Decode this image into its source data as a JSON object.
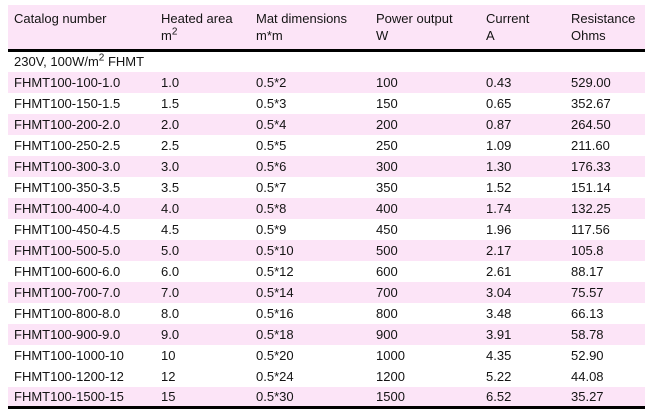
{
  "colors": {
    "highlight_pink": "#fce4f7",
    "border_black": "#000000",
    "text": "#141414"
  },
  "table": {
    "columns": [
      {
        "label": "Catalog number",
        "unit": ""
      },
      {
        "label": "Heated area",
        "unit": "m",
        "unit_sup": "2"
      },
      {
        "label": "Mat dimensions",
        "unit": "m*m"
      },
      {
        "label": "Power output",
        "unit": "W"
      },
      {
        "label": "Current",
        "unit": "A"
      },
      {
        "label": "Resistance",
        "unit": "Ohms"
      }
    ],
    "section": {
      "prefix": "230V, 100W/m",
      "sup": "2",
      "suffix": " FHMT"
    },
    "rows": [
      {
        "shaded": true,
        "cells": [
          "FHMT100-100-1.0",
          "1.0",
          "0.5*2",
          "100",
          "0.43",
          "529.00"
        ]
      },
      {
        "shaded": false,
        "cells": [
          "FHMT100-150-1.5",
          "1.5",
          "0.5*3",
          "150",
          "0.65",
          "352.67"
        ]
      },
      {
        "shaded": true,
        "cells": [
          "FHMT100-200-2.0",
          "2.0",
          "0.5*4",
          "200",
          "0.87",
          "264.50"
        ]
      },
      {
        "shaded": false,
        "cells": [
          "FHMT100-250-2.5",
          "2.5",
          "0.5*5",
          "250",
          "1.09",
          "211.60"
        ]
      },
      {
        "shaded": true,
        "cells": [
          "FHMT100-300-3.0",
          "3.0",
          "0.5*6",
          "300",
          "1.30",
          "176.33"
        ]
      },
      {
        "shaded": false,
        "cells": [
          "FHMT100-350-3.5",
          "3.5",
          "0.5*7",
          "350",
          "1.52",
          "151.14"
        ]
      },
      {
        "shaded": true,
        "cells": [
          "FHMT100-400-4.0",
          "4.0",
          "0.5*8",
          "400",
          "1.74",
          "132.25"
        ]
      },
      {
        "shaded": false,
        "cells": [
          "FHMT100-450-4.5",
          "4.5",
          "0.5*9",
          "450",
          "1.96",
          "117.56"
        ]
      },
      {
        "shaded": true,
        "cells": [
          "FHMT100-500-5.0",
          "5.0",
          "0.5*10",
          "500",
          "2.17",
          "105.8"
        ]
      },
      {
        "shaded": false,
        "cells": [
          "FHMT100-600-6.0",
          "6.0",
          "0.5*12",
          "600",
          "2.61",
          "88.17"
        ]
      },
      {
        "shaded": true,
        "cells": [
          "FHMT100-700-7.0",
          "7.0",
          "0.5*14",
          "700",
          "3.04",
          "75.57"
        ]
      },
      {
        "shaded": false,
        "cells": [
          "FHMT100-800-8.0",
          "8.0",
          "0.5*16",
          "800",
          "3.48",
          "66.13"
        ]
      },
      {
        "shaded": true,
        "cells": [
          "FHMT100-900-9.0",
          "9.0",
          "0.5*18",
          "900",
          "3.91",
          "58.78"
        ]
      },
      {
        "shaded": false,
        "cells": [
          "FHMT100-1000-10",
          "10",
          "0.5*20",
          "1000",
          "4.35",
          "52.90"
        ]
      },
      {
        "shaded": false,
        "cells": [
          "FHMT100-1200-12",
          "12",
          "0.5*24",
          "1200",
          "5.22",
          "44.08"
        ]
      },
      {
        "shaded": true,
        "cells": [
          "FHMT100-1500-15",
          "15",
          "0.5*30",
          "1500",
          "6.52",
          "35.27"
        ]
      }
    ]
  }
}
